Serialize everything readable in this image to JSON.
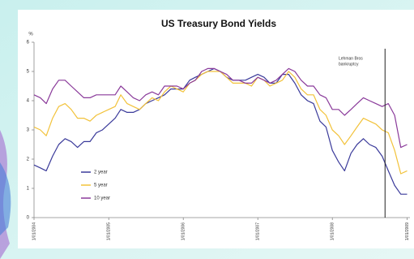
{
  "chart_data": {
    "type": "line",
    "title": "US Treasury Bond Yields",
    "y_label": "%",
    "x": [
      "2004-01-01",
      "2004-02-01",
      "2004-03-01",
      "2004-04-01",
      "2004-05-01",
      "2004-06-01",
      "2004-07-01",
      "2004-08-01",
      "2004-09-01",
      "2004-10-01",
      "2004-11-01",
      "2004-12-01",
      "2005-01-01",
      "2005-02-01",
      "2005-03-01",
      "2005-04-01",
      "2005-05-01",
      "2005-06-01",
      "2005-07-01",
      "2005-08-01",
      "2005-09-01",
      "2005-10-01",
      "2005-11-01",
      "2005-12-01",
      "2006-01-01",
      "2006-02-01",
      "2006-03-01",
      "2006-04-01",
      "2006-05-01",
      "2006-06-01",
      "2006-07-01",
      "2006-08-01",
      "2006-09-01",
      "2006-10-01",
      "2006-11-01",
      "2006-12-01",
      "2007-01-01",
      "2007-02-01",
      "2007-03-01",
      "2007-04-01",
      "2007-05-01",
      "2007-06-01",
      "2007-07-01",
      "2007-08-01",
      "2007-09-01",
      "2007-10-01",
      "2007-11-01",
      "2007-12-01",
      "2008-01-01",
      "2008-02-01",
      "2008-03-01",
      "2008-04-01",
      "2008-05-01",
      "2008-06-01",
      "2008-07-01",
      "2008-08-01",
      "2008-09-01",
      "2008-10-01",
      "2008-11-01",
      "2008-12-01",
      "2009-01-01"
    ],
    "series": [
      {
        "name": "2 year",
        "color": "#3a3a9a",
        "values": [
          1.8,
          1.7,
          1.6,
          2.1,
          2.5,
          2.7,
          2.6,
          2.4,
          2.6,
          2.6,
          2.9,
          3.0,
          3.2,
          3.4,
          3.7,
          3.6,
          3.6,
          3.7,
          3.9,
          4.0,
          4.1,
          4.2,
          4.4,
          4.4,
          4.4,
          4.7,
          4.8,
          4.9,
          5.0,
          5.1,
          5.0,
          4.8,
          4.7,
          4.7,
          4.7,
          4.8,
          4.9,
          4.8,
          4.6,
          4.6,
          4.9,
          4.9,
          4.6,
          4.2,
          4.0,
          3.9,
          3.3,
          3.1,
          2.3,
          1.9,
          1.6,
          2.2,
          2.5,
          2.7,
          2.5,
          2.4,
          2.1,
          1.6,
          1.1,
          0.8,
          0.8
        ]
      },
      {
        "name": "5 year",
        "color": "#f2c23a",
        "values": [
          3.1,
          3.0,
          2.8,
          3.4,
          3.8,
          3.9,
          3.7,
          3.4,
          3.4,
          3.3,
          3.5,
          3.6,
          3.7,
          3.8,
          4.2,
          3.9,
          3.8,
          3.7,
          3.9,
          4.1,
          4.0,
          4.3,
          4.5,
          4.4,
          4.3,
          4.6,
          4.7,
          4.9,
          5.0,
          5.0,
          5.0,
          4.8,
          4.6,
          4.6,
          4.6,
          4.5,
          4.8,
          4.7,
          4.5,
          4.6,
          4.7,
          5.0,
          4.8,
          4.4,
          4.2,
          4.2,
          3.7,
          3.5,
          3.0,
          2.8,
          2.5,
          2.8,
          3.1,
          3.4,
          3.3,
          3.2,
          3.0,
          2.9,
          2.3,
          1.5,
          1.6
        ]
      },
      {
        "name": "10 year",
        "color": "#8a3a9a",
        "values": [
          4.2,
          4.1,
          3.9,
          4.4,
          4.7,
          4.7,
          4.5,
          4.3,
          4.1,
          4.1,
          4.2,
          4.2,
          4.2,
          4.2,
          4.5,
          4.3,
          4.1,
          4.0,
          4.2,
          4.3,
          4.2,
          4.5,
          4.5,
          4.5,
          4.4,
          4.6,
          4.7,
          5.0,
          5.1,
          5.1,
          5.0,
          4.9,
          4.7,
          4.7,
          4.6,
          4.6,
          4.8,
          4.7,
          4.6,
          4.7,
          4.9,
          5.1,
          5.0,
          4.7,
          4.5,
          4.5,
          4.2,
          4.1,
          3.7,
          3.7,
          3.5,
          3.7,
          3.9,
          4.1,
          4.0,
          3.9,
          3.8,
          3.9,
          3.5,
          2.4,
          2.5
        ]
      }
    ],
    "xlim": [
      "2004-01-01",
      "2009-01-15"
    ],
    "xticks": [
      {
        "value": "2004-01-01",
        "label": "1/01/2004"
      },
      {
        "value": "2005-01-01",
        "label": "1/01/2005"
      },
      {
        "value": "2006-01-01",
        "label": "1/01/2006"
      },
      {
        "value": "2007-01-01",
        "label": "1/01/2007"
      },
      {
        "value": "2008-01-01",
        "label": "1/01/2008"
      },
      {
        "value": "2009-01-01",
        "label": "1/01/2009"
      }
    ],
    "ylim": [
      0,
      6
    ],
    "yticks": [
      0,
      1,
      2,
      3,
      4,
      5,
      6
    ],
    "annotation": {
      "lines": [
        "Lehman Bros",
        "bankruptcy"
      ],
      "x": "2008-09-15"
    }
  }
}
